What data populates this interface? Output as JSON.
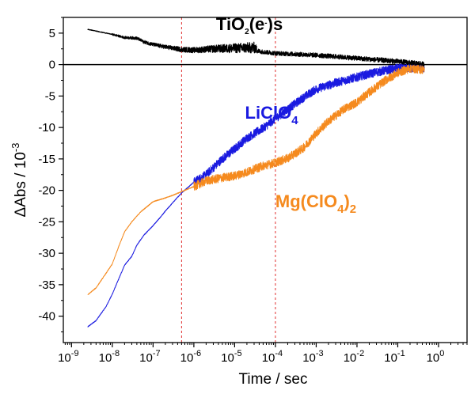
{
  "chart_data": {
    "type": "line",
    "xlabel": "Time / sec",
    "ylabel": "ΔAbs / 10",
    "ylabel_exponent": "-3",
    "x_scale": "log",
    "xlim": [
      6.3e-10,
      5.0
    ],
    "ylim": [
      -44.2,
      7.5
    ],
    "x_ticks": [
      {
        "value": 1e-09,
        "base": "10",
        "exp": "-9"
      },
      {
        "value": 1e-08,
        "base": "10",
        "exp": "-8"
      },
      {
        "value": 1e-07,
        "base": "10",
        "exp": "-7"
      },
      {
        "value": 1e-06,
        "base": "10",
        "exp": "-6"
      },
      {
        "value": 1e-05,
        "base": "10",
        "exp": "-5"
      },
      {
        "value": 0.0001,
        "base": "10",
        "exp": "-4"
      },
      {
        "value": 0.001,
        "base": "10",
        "exp": "-3"
      },
      {
        "value": 0.01,
        "base": "10",
        "exp": "-2"
      },
      {
        "value": 0.1,
        "base": "10",
        "exp": "-1"
      },
      {
        "value": 1,
        "base": "10",
        "exp": "0"
      }
    ],
    "y_ticks": [
      {
        "value": 5,
        "label": "5"
      },
      {
        "value": 0,
        "label": "0"
      },
      {
        "value": -5,
        "label": "-5"
      },
      {
        "value": -10,
        "label": "-10"
      },
      {
        "value": -15,
        "label": "-15"
      },
      {
        "value": -20,
        "label": "-20"
      },
      {
        "value": -25,
        "label": "-25"
      },
      {
        "value": -30,
        "label": "-30"
      },
      {
        "value": -35,
        "label": "-35"
      },
      {
        "value": -40,
        "label": "-40"
      }
    ],
    "zero_line": 0,
    "vlines": [
      {
        "x": 5e-07,
        "color": "#e03030"
      },
      {
        "x": 0.0001,
        "color": "#e03030"
      }
    ],
    "series": [
      {
        "name": "LiClO4",
        "label_parts": [
          "LiClO",
          "4"
        ],
        "label_anchor": [
          1.8e-05,
          -8.6
        ],
        "color": "#1a1ae0",
        "noise_from_x": 1e-06,
        "noise_amplitude": 0.7,
        "points": [
          [
            2.5e-09,
            -41.7
          ],
          [
            4e-09,
            -40.7
          ],
          [
            7e-09,
            -38.5
          ],
          [
            1e-08,
            -36.5
          ],
          [
            1.5e-08,
            -33.8
          ],
          [
            2e-08,
            -31.9
          ],
          [
            3e-08,
            -30.5
          ],
          [
            4e-08,
            -28.7
          ],
          [
            6e-08,
            -27.1
          ],
          [
            1e-07,
            -25.6
          ],
          [
            1.5e-07,
            -24.3
          ],
          [
            2e-07,
            -23.3
          ],
          [
            3e-07,
            -22.0
          ],
          [
            5e-07,
            -20.4
          ],
          [
            1e-06,
            -18.7
          ],
          [
            2e-06,
            -17.5
          ],
          [
            5e-06,
            -15.0
          ],
          [
            1e-05,
            -13.4
          ],
          [
            2e-05,
            -11.7
          ],
          [
            5e-05,
            -10.1
          ],
          [
            0.0001,
            -8.6
          ],
          [
            0.0002,
            -7.1
          ],
          [
            0.0005,
            -5.2
          ],
          [
            0.001,
            -3.9
          ],
          [
            0.003,
            -2.9
          ],
          [
            0.01,
            -2.0
          ],
          [
            0.03,
            -1.2
          ],
          [
            0.1,
            -0.6
          ],
          [
            0.45,
            -0.6
          ]
        ]
      },
      {
        "name": "Mg(ClO4)2",
        "label_parts": [
          "Mg(ClO",
          "4",
          ")",
          "2"
        ],
        "label_anchor": [
          0.0001,
          -22.7
        ],
        "color": "#f58a1e",
        "noise_from_x": 1e-06,
        "noise_amplitude": 0.7,
        "points": [
          [
            2.5e-09,
            -36.6
          ],
          [
            4e-09,
            -35.5
          ],
          [
            7e-09,
            -33.2
          ],
          [
            1e-08,
            -31.7
          ],
          [
            1.5e-08,
            -28.6
          ],
          [
            2e-08,
            -26.6
          ],
          [
            3e-08,
            -25.0
          ],
          [
            5e-08,
            -23.4
          ],
          [
            1e-07,
            -21.8
          ],
          [
            2e-07,
            -21.2
          ],
          [
            3e-07,
            -20.8
          ],
          [
            5e-07,
            -20.2
          ],
          [
            1e-06,
            -19.4
          ],
          [
            2e-06,
            -18.5
          ],
          [
            5e-06,
            -18.0
          ],
          [
            1e-05,
            -17.7
          ],
          [
            2e-05,
            -17.1
          ],
          [
            5e-05,
            -16.1
          ],
          [
            0.0001,
            -15.6
          ],
          [
            0.0002,
            -14.9
          ],
          [
            0.0005,
            -13.2
          ],
          [
            0.001,
            -10.9
          ],
          [
            0.002,
            -9.0
          ],
          [
            0.005,
            -7.0
          ],
          [
            0.01,
            -6.0
          ],
          [
            0.02,
            -4.4
          ],
          [
            0.05,
            -2.5
          ],
          [
            0.1,
            -1.3
          ],
          [
            0.2,
            -0.6
          ],
          [
            0.45,
            -0.8
          ]
        ]
      },
      {
        "name": "TiO2(e-)s",
        "label_parts": [
          "TiO",
          "2",
          "(e",
          "-",
          ")s"
        ],
        "label_anchor": [
          3.5e-06,
          5.5
        ],
        "color": "#000000",
        "noise_from_x": 1e-08,
        "noise_amplitude": 0.45,
        "noise_growth": [
          [
            1e-08,
            0.15
          ],
          [
            1e-07,
            0.3
          ],
          [
            1e-06,
            0.45
          ],
          [
            3e-05,
            0.9
          ],
          [
            4e-05,
            0.35
          ],
          [
            0.1,
            0.4
          ],
          [
            0.45,
            0.35
          ]
        ],
        "points": [
          [
            2.5e-09,
            5.6
          ],
          [
            5e-09,
            5.2
          ],
          [
            1e-08,
            4.8
          ],
          [
            2e-08,
            4.3
          ],
          [
            4e-08,
            4.2
          ],
          [
            6e-08,
            3.6
          ],
          [
            1e-07,
            3.2
          ],
          [
            2e-07,
            2.8
          ],
          [
            5e-07,
            2.4
          ],
          [
            1e-06,
            2.3
          ],
          [
            3e-06,
            2.5
          ],
          [
            1e-05,
            2.6
          ],
          [
            3e-05,
            2.7
          ],
          [
            4e-05,
            2.1
          ],
          [
            0.0001,
            1.8
          ],
          [
            0.001,
            1.5
          ],
          [
            0.01,
            1.0
          ],
          [
            0.1,
            0.5
          ],
          [
            0.45,
            0.1
          ]
        ]
      }
    ]
  }
}
